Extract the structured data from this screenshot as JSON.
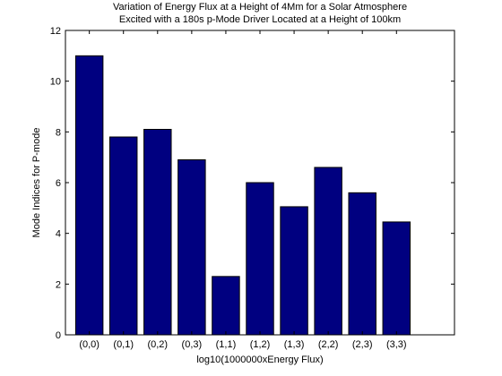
{
  "chart_data": {
    "type": "bar",
    "title": "Variation of Energy Flux at a Height of 4Mm for a Solar Atmosphere",
    "subtitle": "Excited with a 180s p-Mode Driver Located at a Height of 100km",
    "xlabel": "log10(1000000xEnergy Flux)",
    "ylabel": "Mode Indices for P-mode",
    "categories": [
      "(0,0)",
      "(0,1)",
      "(0,2)",
      "(0,3)",
      "(1,1)",
      "(1,2)",
      "(1,3)",
      "(2,2)",
      "(2,3)",
      "(3,3)"
    ],
    "values": [
      11.0,
      7.8,
      8.1,
      6.9,
      2.3,
      6.0,
      5.05,
      6.6,
      5.6,
      4.45
    ],
    "ylim": [
      0,
      12
    ],
    "yticks": [
      0,
      2,
      4,
      6,
      8,
      10,
      12
    ],
    "xlim": [
      0.3,
      11.7
    ],
    "bar_color": "#000080",
    "grid": false,
    "legend": "none"
  }
}
